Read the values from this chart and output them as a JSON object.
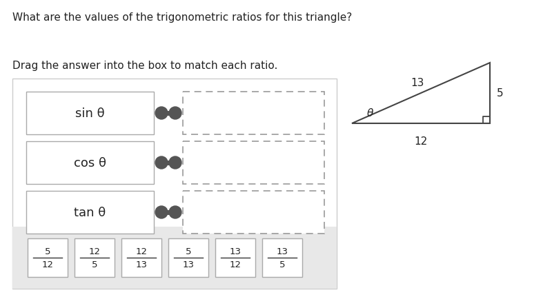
{
  "title": "What are the values of the trigonometric ratios for this triangle?",
  "subtitle": "Drag the answer into the box to match each ratio.",
  "background_color": "#ffffff",
  "ratios": [
    "sin θ",
    "cos θ",
    "tan θ"
  ],
  "answer_tiles": [
    {
      "num": "5",
      "den": "12"
    },
    {
      "num": "12",
      "den": "5"
    },
    {
      "num": "12",
      "den": "13"
    },
    {
      "num": "5",
      "den": "13"
    },
    {
      "num": "13",
      "den": "12"
    },
    {
      "num": "13",
      "den": "5"
    }
  ],
  "tri_label_hyp": "13",
  "tri_label_base": "12",
  "tri_label_vert": "5",
  "tri_label_angle": "θ",
  "panel_border_color": "#cccccc",
  "label_box_border": "#aaaaaa",
  "dashed_box_border": "#999999",
  "tile_border": "#aaaaaa",
  "bank_bg": "#e0e0e0",
  "connector_color": "#555555",
  "text_color": "#222222"
}
